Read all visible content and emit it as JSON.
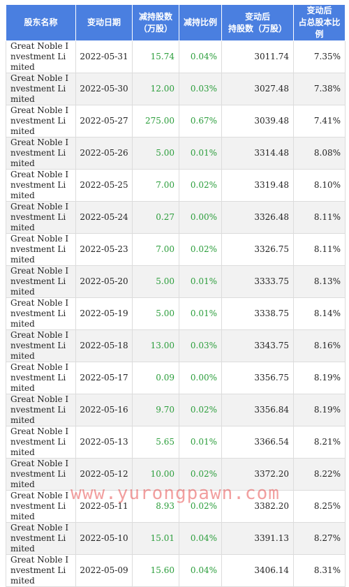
{
  "headers": [
    {
      "line1": "股东名称",
      "line2": ""
    },
    {
      "line1": "变动日期",
      "line2": ""
    },
    {
      "line1": "减持股数",
      "line2": "（万股）"
    },
    {
      "line1": "减持比例",
      "line2": ""
    },
    {
      "line1": "变动后",
      "line2": "持股数（万股）"
    },
    {
      "line1": "变动后",
      "line2": "占总股本比例"
    }
  ],
  "rows": [
    {
      "name": "Great Noble Investment Limited",
      "date": "2022-05-31",
      "shares": "15.74",
      "ratio": "0.04%",
      "after": "3011.74",
      "pct": "7.35%"
    },
    {
      "name": "Great Noble Investment Limited",
      "date": "2022-05-30",
      "shares": "12.00",
      "ratio": "0.03%",
      "after": "3027.48",
      "pct": "7.38%"
    },
    {
      "name": "Great Noble Investment Limited",
      "date": "2022-05-27",
      "shares": "275.00",
      "ratio": "0.67%",
      "after": "3039.48",
      "pct": "7.41%"
    },
    {
      "name": "Great Noble Investment Limited",
      "date": "2022-05-26",
      "shares": "5.00",
      "ratio": "0.01%",
      "after": "3314.48",
      "pct": "8.08%"
    },
    {
      "name": "Great Noble Investment Limited",
      "date": "2022-05-25",
      "shares": "7.00",
      "ratio": "0.02%",
      "after": "3319.48",
      "pct": "8.10%"
    },
    {
      "name": "Great Noble Investment Limited",
      "date": "2022-05-24",
      "shares": "0.27",
      "ratio": "0.00%",
      "after": "3326.48",
      "pct": "8.11%"
    },
    {
      "name": "Great Noble Investment Limited",
      "date": "2022-05-23",
      "shares": "7.00",
      "ratio": "0.02%",
      "after": "3326.75",
      "pct": "8.11%"
    },
    {
      "name": "Great Noble Investment Limited",
      "date": "2022-05-20",
      "shares": "5.00",
      "ratio": "0.01%",
      "after": "3333.75",
      "pct": "8.13%"
    },
    {
      "name": "Great Noble Investment Limited",
      "date": "2022-05-19",
      "shares": "5.00",
      "ratio": "0.01%",
      "after": "3338.75",
      "pct": "8.14%"
    },
    {
      "name": "Great Noble Investment Limited",
      "date": "2022-05-18",
      "shares": "13.00",
      "ratio": "0.03%",
      "after": "3343.75",
      "pct": "8.16%"
    },
    {
      "name": "Great Noble Investment Limited",
      "date": "2022-05-17",
      "shares": "0.09",
      "ratio": "0.00%",
      "after": "3356.75",
      "pct": "8.19%"
    },
    {
      "name": "Great Noble Investment Limited",
      "date": "2022-05-16",
      "shares": "9.70",
      "ratio": "0.02%",
      "after": "3356.84",
      "pct": "8.19%"
    },
    {
      "name": "Great Noble Investment Limited",
      "date": "2022-05-13",
      "shares": "5.65",
      "ratio": "0.01%",
      "after": "3366.54",
      "pct": "8.21%"
    },
    {
      "name": "Great Noble Investment Limited",
      "date": "2022-05-12",
      "shares": "10.00",
      "ratio": "0.02%",
      "after": "3372.20",
      "pct": "8.22%"
    },
    {
      "name": "Great Noble Investment Limited",
      "date": "2022-05-11",
      "shares": "8.93",
      "ratio": "0.02%",
      "after": "3382.20",
      "pct": "8.25%"
    },
    {
      "name": "Great Noble Investment Limited",
      "date": "2022-05-10",
      "shares": "15.01",
      "ratio": "0.04%",
      "after": "3391.13",
      "pct": "8.27%"
    },
    {
      "name": "Great Noble Investment Limited",
      "date": "2022-05-09",
      "shares": "15.60",
      "ratio": "0.04%",
      "after": "3406.14",
      "pct": "8.31%"
    }
  ],
  "watermark": "www.yurongpawn.com",
  "colors": {
    "header_bg": "#4a7fe0",
    "green_text": "#2a9d3a",
    "stripe": "#f2f2f2"
  }
}
